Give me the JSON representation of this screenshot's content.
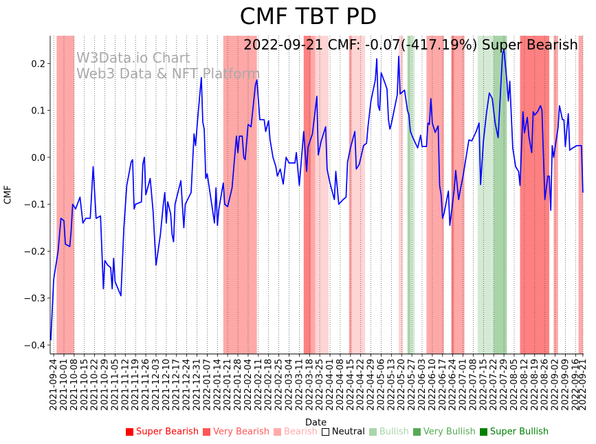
{
  "chart_data": {
    "type": "line",
    "title": "CMF TBT PD",
    "annotation": "2022-09-21 CMF: -0.07(-417.19%) Super Bearish",
    "watermark": [
      "W3Data.io Chart",
      "Web3 Data & NFT Platform"
    ],
    "xlabel": "Date",
    "ylabel": "CMF",
    "start_date": "2021-09-24",
    "xlim_days": [
      -2.4,
      362.5
    ],
    "ylim": [
      -0.419,
      0.259
    ],
    "yticks": [
      0.2,
      0.1,
      0.0,
      -0.1,
      -0.2,
      -0.3,
      -0.4
    ],
    "ytick_labels": [
      "0.2",
      "0.1",
      "0.0",
      "−0.1",
      "−0.2",
      "−0.3",
      "−0.4"
    ],
    "xtick_labels": [
      "2021-09-24",
      "2021-10-01",
      "2021-10-08",
      "2021-10-15",
      "2021-10-22",
      "2021-10-29",
      "2021-11-05",
      "2021-11-12",
      "2021-11-19",
      "2021-11-26",
      "2021-12-03",
      "2021-12-10",
      "2021-12-17",
      "2021-12-24",
      "2021-12-31",
      "2022-01-07",
      "2022-01-14",
      "2022-01-21",
      "2022-01-28",
      "2022-02-04",
      "2022-02-11",
      "2022-02-18",
      "2022-02-25",
      "2022-03-04",
      "2022-03-11",
      "2022-03-18",
      "2022-03-25",
      "2022-04-01",
      "2022-04-08",
      "2022-04-15",
      "2022-04-22",
      "2022-04-29",
      "2022-05-06",
      "2022-05-13",
      "2022-05-20",
      "2022-05-27",
      "2022-06-03",
      "2022-06-10",
      "2022-06-17",
      "2022-06-24",
      "2022-07-01",
      "2022-07-08",
      "2022-07-15",
      "2022-07-22",
      "2022-07-29",
      "2022-08-05",
      "2022-08-12",
      "2022-08-19",
      "2022-08-26",
      "2022-09-02",
      "2022-09-09",
      "2022-09-16",
      "2022-09-21"
    ],
    "xtick_days": [
      0,
      7,
      14,
      21,
      28,
      35,
      42,
      49,
      56,
      63,
      70,
      77,
      84,
      91,
      98,
      105,
      112,
      119,
      126,
      133,
      140,
      147,
      154,
      161,
      168,
      175,
      182,
      189,
      196,
      203,
      210,
      217,
      224,
      231,
      238,
      245,
      252,
      259,
      266,
      273,
      280,
      287,
      294,
      301,
      308,
      315,
      322,
      329,
      336,
      343,
      350,
      357,
      362
    ],
    "grid": "x dotted",
    "line_color": "#0000ff",
    "series": [
      {
        "name": "CMF",
        "day_offsets": [
          -2,
          0,
          3,
          5,
          7,
          8,
          11,
          12,
          13,
          15,
          18,
          20,
          22,
          25,
          27,
          29,
          32,
          34,
          35,
          37,
          39,
          40,
          41,
          42,
          46,
          48,
          50,
          53,
          54,
          55,
          56,
          60,
          61,
          62,
          63,
          66,
          68,
          70,
          73,
          75,
          76,
          77,
          78,
          80,
          81,
          82,
          83,
          87,
          89,
          90,
          94,
          96,
          97,
          99,
          101,
          102,
          103,
          104,
          105,
          110,
          111,
          112,
          113,
          116,
          117,
          119,
          122,
          125,
          126,
          127,
          129,
          130,
          131,
          133,
          135,
          138,
          139,
          141,
          144,
          145,
          147,
          148,
          150,
          152,
          153,
          155,
          157,
          159,
          161,
          165,
          166,
          168,
          171,
          173,
          174,
          177,
          180,
          181,
          183,
          186,
          187,
          189,
          192,
          193,
          195,
          198,
          200,
          201,
          203,
          206,
          207,
          209,
          212,
          214,
          215,
          217,
          220,
          221,
          222,
          223,
          224,
          227,
          228,
          229,
          230,
          231,
          235,
          236,
          237,
          240,
          242,
          243,
          244,
          246,
          249,
          251,
          252,
          255,
          256,
          257,
          258,
          259,
          261,
          263,
          264,
          265,
          266,
          267,
          270,
          271,
          274,
          275,
          277,
          278,
          280,
          284,
          286,
          289,
          291,
          292,
          294,
          296,
          298,
          300,
          302,
          304,
          305,
          307,
          308,
          310,
          311,
          312,
          314,
          316,
          318,
          319,
          321,
          322,
          324,
          325,
          327,
          328,
          329,
          331,
          333,
          334,
          336,
          338,
          339,
          340,
          341,
          342,
          345,
          346,
          348,
          349,
          350,
          352,
          353,
          355,
          358,
          361,
          362
        ],
        "values": [
          -0.39,
          -0.26,
          -0.2,
          -0.13,
          -0.135,
          -0.185,
          -0.19,
          -0.155,
          -0.1,
          -0.11,
          -0.085,
          -0.14,
          -0.13,
          -0.13,
          -0.02,
          -0.13,
          -0.125,
          -0.28,
          -0.22,
          -0.23,
          -0.235,
          -0.28,
          -0.215,
          -0.265,
          -0.295,
          -0.15,
          -0.06,
          -0.01,
          -0.005,
          -0.11,
          -0.1,
          -0.095,
          -0.015,
          0.0,
          -0.08,
          -0.045,
          -0.115,
          -0.23,
          -0.165,
          -0.1,
          -0.075,
          -0.14,
          -0.095,
          -0.12,
          -0.165,
          -0.18,
          -0.1,
          -0.05,
          -0.15,
          -0.1,
          -0.075,
          0.05,
          0.025,
          0.1,
          0.17,
          0.075,
          0.06,
          -0.045,
          -0.035,
          -0.14,
          -0.065,
          -0.145,
          -0.11,
          -0.055,
          -0.1,
          -0.105,
          -0.065,
          0.045,
          0.01,
          0.045,
          0.045,
          0.0,
          -0.005,
          0.07,
          0.065,
          0.155,
          0.165,
          0.08,
          0.08,
          0.055,
          0.078,
          0.038,
          0.0,
          -0.02,
          -0.04,
          -0.025,
          -0.057,
          0.0,
          -0.012,
          -0.012,
          0.01,
          -0.06,
          0.055,
          -0.03,
          0.022,
          0.05,
          0.13,
          0.005,
          0.035,
          0.065,
          -0.025,
          -0.055,
          -0.09,
          -0.03,
          -0.1,
          -0.09,
          -0.085,
          -0.01,
          0.02,
          0.055,
          -0.025,
          -0.015,
          0.025,
          0.03,
          0.065,
          0.12,
          0.165,
          0.21,
          0.11,
          0.1,
          0.18,
          0.155,
          0.145,
          0.08,
          0.06,
          0.072,
          0.133,
          0.215,
          0.135,
          0.143,
          0.1,
          0.09,
          0.055,
          0.04,
          0.02,
          0.047,
          0.023,
          0.023,
          0.073,
          0.07,
          0.125,
          0.073,
          0.053,
          0.067,
          -0.06,
          -0.08,
          -0.13,
          -0.12,
          -0.072,
          -0.145,
          -0.068,
          -0.028,
          -0.09,
          -0.072,
          -0.04,
          0.037,
          0.035,
          0.055,
          0.073,
          -0.058,
          0.035,
          0.093,
          0.137,
          0.125,
          0.073,
          0.042,
          0.1,
          0.22,
          0.23,
          0.162,
          0.12,
          0.162,
          0.02,
          -0.02,
          -0.03,
          -0.06,
          0.097,
          0.052,
          0.085,
          0.045,
          0.01,
          0.097,
          0.09,
          0.097,
          0.11,
          0.1,
          -0.09,
          -0.04,
          -0.04,
          -0.113,
          0.025,
          0.0,
          0.063,
          0.11,
          0.08,
          0.08,
          0.023,
          0.093,
          0.015,
          0.02,
          0.025,
          0.025,
          -0.075
        ]
      }
    ],
    "regions": [
      {
        "from": 2,
        "to": 14,
        "level": "Very Bearish"
      },
      {
        "from": 116,
        "to": 139,
        "level": "Very Bearish"
      },
      {
        "from": 171,
        "to": 176,
        "level": "Super Bearish"
      },
      {
        "from": 176,
        "to": 179,
        "level": "Very Bearish"
      },
      {
        "from": 179,
        "to": 188,
        "level": "Bearish"
      },
      {
        "from": 202,
        "to": 204,
        "level": "Very Bearish"
      },
      {
        "from": 204,
        "to": 213,
        "level": "Bearish"
      },
      {
        "from": 236,
        "to": 239,
        "level": "Bearish"
      },
      {
        "from": 242,
        "to": 244,
        "level": "Very Bullish"
      },
      {
        "from": 244,
        "to": 247,
        "level": "Bullish"
      },
      {
        "from": 255,
        "to": 267,
        "level": "Very Bearish"
      },
      {
        "from": 272,
        "to": 274,
        "level": "Super Bearish"
      },
      {
        "from": 274,
        "to": 281,
        "level": "Very Bearish"
      },
      {
        "from": 290,
        "to": 301,
        "level": "Bullish"
      },
      {
        "from": 301,
        "to": 310,
        "level": "Very Bullish"
      },
      {
        "from": 319,
        "to": 339,
        "level": "Super Bearish"
      },
      {
        "from": 342,
        "to": 345,
        "level": "Very Bearish"
      },
      {
        "from": 359,
        "to": 362,
        "level": "Very Bearish"
      }
    ],
    "region_colors": {
      "Super Bearish": "#ff8080",
      "Very Bearish": "#ffa8a8",
      "Bearish": "#ffd4d4",
      "Bullish": "#d4ead4",
      "Very Bullish": "#a8d4a8",
      "Super Bullish": "#80c080"
    },
    "legend": {
      "placement": "bottom",
      "items": [
        {
          "label": "Super Bearish",
          "color": "#ff0000"
        },
        {
          "label": "Very Bearish",
          "color": "#ff5555"
        },
        {
          "label": "Bearish",
          "color": "#ffaaaa"
        },
        {
          "label": "Neutral",
          "color": "#000000"
        },
        {
          "label": "Bullish",
          "color": "#aad5aa"
        },
        {
          "label": "Very Bullish",
          "color": "#55aa55"
        },
        {
          "label": "Super Bullish",
          "color": "#008000"
        }
      ]
    }
  }
}
